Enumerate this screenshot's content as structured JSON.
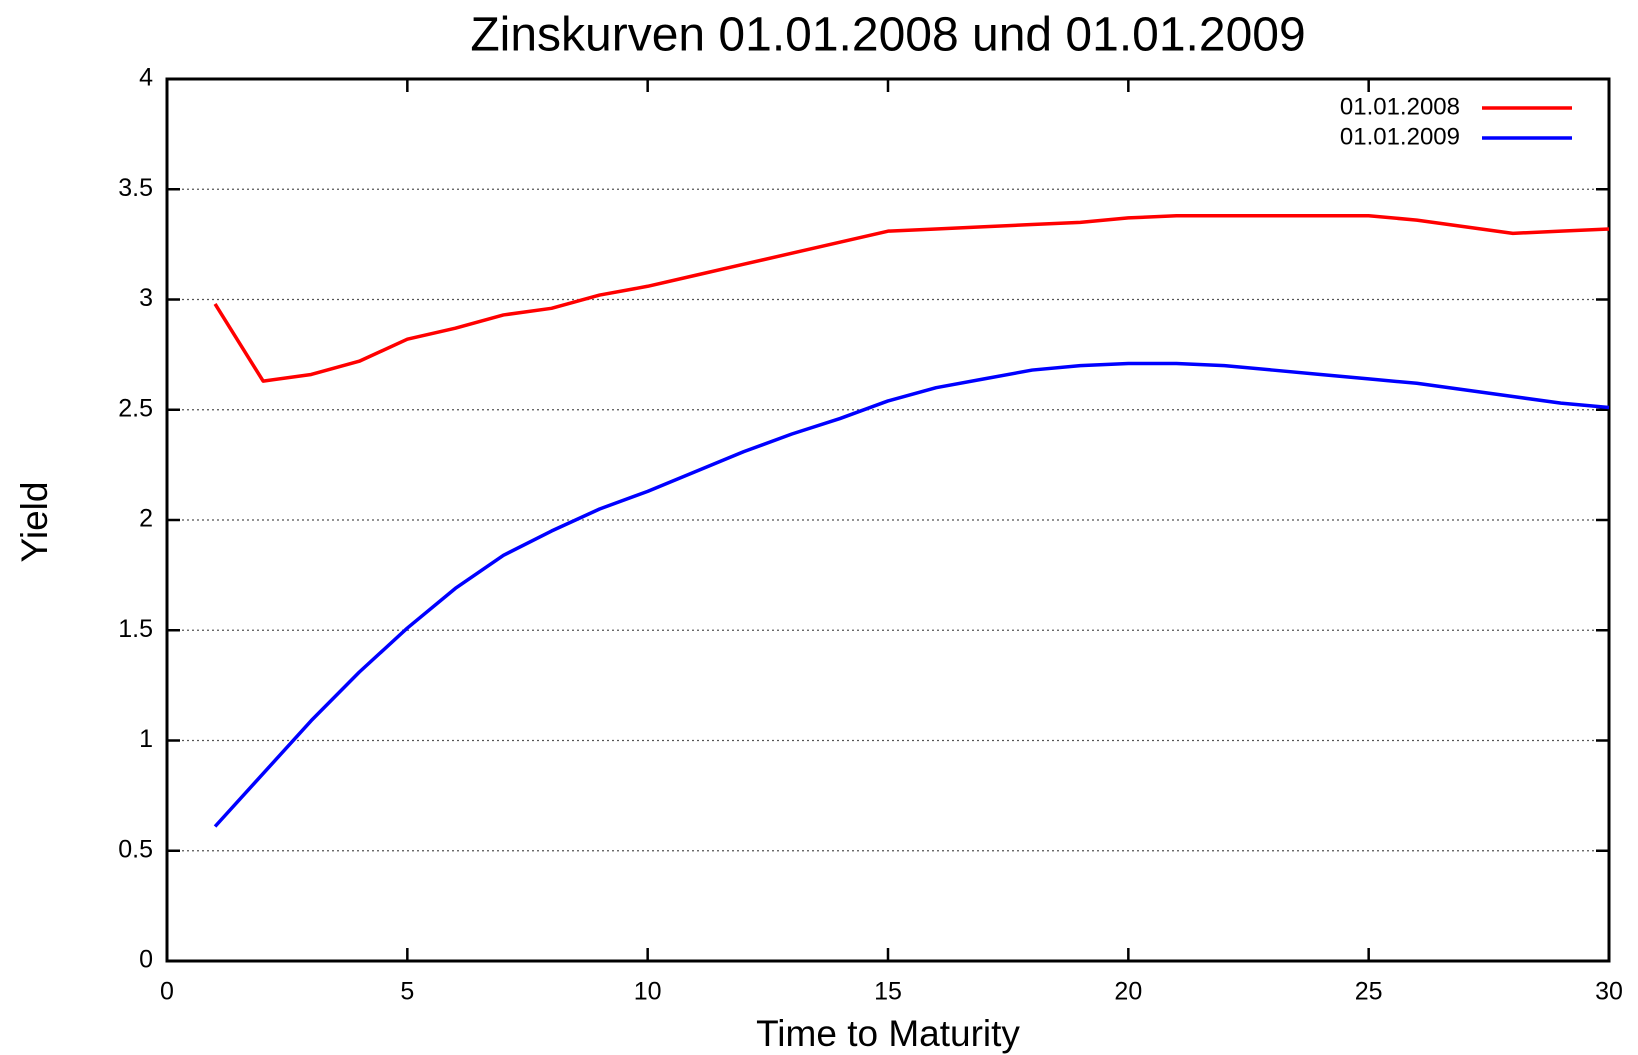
{
  "chart_data": {
    "type": "line",
    "title": "Zinskurven 01.01.2008 und 01.01.2009",
    "xlabel": "Time to Maturity",
    "ylabel": "Yield",
    "x": [
      1,
      2,
      3,
      4,
      5,
      6,
      7,
      8,
      9,
      10,
      11,
      12,
      13,
      14,
      15,
      16,
      17,
      18,
      19,
      20,
      21,
      22,
      23,
      24,
      25,
      26,
      27,
      28,
      29,
      30
    ],
    "series": [
      {
        "name": "01.01.2008",
        "color": "#ff0000",
        "values": [
          2.98,
          2.63,
          2.66,
          2.72,
          2.82,
          2.87,
          2.93,
          2.96,
          3.02,
          3.06,
          3.11,
          3.16,
          3.21,
          3.26,
          3.31,
          3.32,
          3.33,
          3.34,
          3.35,
          3.37,
          3.38,
          3.38,
          3.38,
          3.38,
          3.38,
          3.36,
          3.33,
          3.3,
          3.31,
          3.32
        ]
      },
      {
        "name": "01.01.2009",
        "color": "#0000ff",
        "values": [
          0.61,
          0.85,
          1.09,
          1.31,
          1.51,
          1.69,
          1.84,
          1.95,
          2.05,
          2.13,
          2.22,
          2.31,
          2.39,
          2.46,
          2.54,
          2.6,
          2.64,
          2.68,
          2.7,
          2.71,
          2.71,
          2.7,
          2.68,
          2.66,
          2.64,
          2.62,
          2.59,
          2.56,
          2.53,
          2.51
        ]
      }
    ],
    "xlim": [
      0,
      30
    ],
    "xticks": [
      0,
      5,
      10,
      15,
      20,
      25,
      30
    ],
    "ylim": [
      0,
      4
    ],
    "yticks": [
      0,
      0.5,
      1,
      1.5,
      2,
      2.5,
      3,
      3.5,
      4
    ],
    "grid": true,
    "legend": "top-right"
  }
}
